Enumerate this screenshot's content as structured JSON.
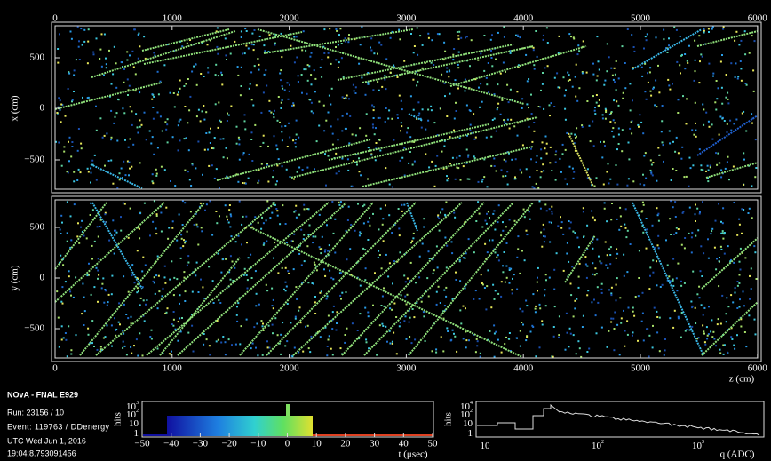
{
  "info": {
    "title": "NOvA - FNAL E929",
    "run": "Run:   23156 / 10",
    "event": "Event: 119763 / DDenergy",
    "date": "UTC Wed Jun 1, 2016",
    "time": "19:04:8.793091456"
  },
  "top_view": {
    "y_label": "x (cm)",
    "x_ticks": [
      "0",
      "1000",
      "2000",
      "3000",
      "4000",
      "5000",
      "6000"
    ],
    "y_ticks": [
      "500",
      "0",
      "−500"
    ]
  },
  "side_view": {
    "y_label": "y (cm)",
    "x_label": "z (cm)",
    "x_ticks": [
      "0",
      "1000",
      "2000",
      "3000",
      "4000",
      "5000",
      "6000"
    ],
    "y_ticks": [
      "500",
      "0",
      "−500"
    ]
  },
  "time_hist": {
    "y_label": "hits",
    "x_label": "t (μsec)",
    "x_ticks": [
      "−50",
      "−40",
      "−30",
      "−20",
      "−10",
      "0",
      "10",
      "20",
      "30",
      "40",
      "50"
    ],
    "y_ticks": [
      {
        "base": "10",
        "exp": "3"
      },
      {
        "base": "10",
        "exp": "2"
      },
      {
        "base": "10",
        "exp": ""
      },
      {
        "base": "1",
        "exp": ""
      }
    ]
  },
  "charge_hist": {
    "y_label": "hits",
    "x_label": "q (ADC)",
    "x_ticks": [
      {
        "base": "10",
        "exp": ""
      },
      {
        "base": "10",
        "exp": "2"
      },
      {
        "base": "10",
        "exp": "3"
      }
    ],
    "y_ticks": [
      {
        "base": "10",
        "exp": "4"
      },
      {
        "base": "10",
        "exp": "2"
      },
      {
        "base": "10",
        "exp": ""
      },
      {
        "base": "1",
        "exp": ""
      }
    ]
  }
}
